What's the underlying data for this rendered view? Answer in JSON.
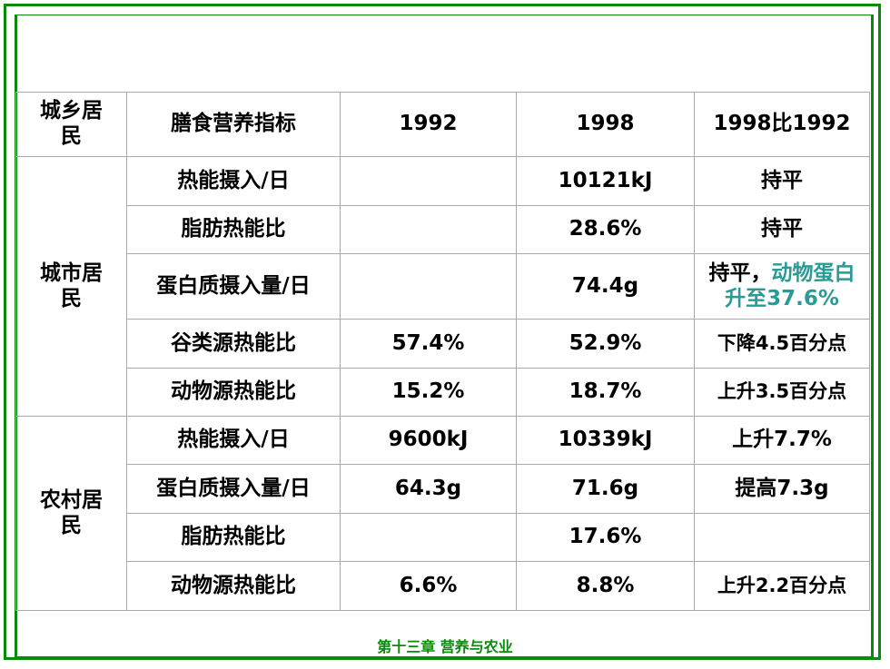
{
  "table": {
    "header": {
      "group": "城乡居\n民",
      "indicator": "膳食营养指标",
      "y1992": "1992",
      "y1998": "1998",
      "compare": "1998比1992"
    },
    "urban": {
      "label": "城市居\n民",
      "rows": [
        {
          "indicator": "热能摄入/日",
          "v1992": "",
          "v1998": "10121kJ",
          "compare_black": "持平",
          "compare_teal": ""
        },
        {
          "indicator": "脂肪热能比",
          "v1992": "",
          "v1998": "28.6%",
          "compare_black": "持平",
          "compare_teal": ""
        },
        {
          "indicator": "蛋白质摄入量/日",
          "v1992": "",
          "v1998": "74.4g",
          "compare_black": "持平，",
          "compare_teal": "动物蛋白升至37.6%"
        },
        {
          "indicator": "谷类源热能比",
          "v1992": "57.4%",
          "v1998": "52.9%",
          "compare_black": "",
          "compare_teal": "下降4.5百分点"
        },
        {
          "indicator": "动物源热能比",
          "v1992": "15.2%",
          "v1998": "18.7%",
          "compare_black": "",
          "compare_teal": "上升3.5百分点"
        }
      ]
    },
    "rural": {
      "label": "农村居\n民",
      "rows": [
        {
          "indicator": "热能摄入/日",
          "v1992": "9600kJ",
          "v1998": "10339kJ",
          "compare_black": "",
          "compare_teal": "上升7.7%"
        },
        {
          "indicator": "蛋白质摄入量/日",
          "v1992": "64.3g",
          "v1998": "71.6g",
          "compare_black": "",
          "compare_teal": "提高7.3g"
        },
        {
          "indicator": "脂肪热能比",
          "v1992": "",
          "v1998": "17.6%",
          "compare_black": "",
          "compare_teal": ""
        },
        {
          "indicator": "动物源热能比",
          "v1992": "6.6%",
          "v1998": "8.8%",
          "compare_black": "",
          "compare_teal": "上升2.2百分点"
        }
      ]
    }
  },
  "footer": "第十三章 营养与农业",
  "colors": {
    "frame": "#0a8a0a",
    "teal": "#2a9a94",
    "grid": "#a9a9a9"
  }
}
